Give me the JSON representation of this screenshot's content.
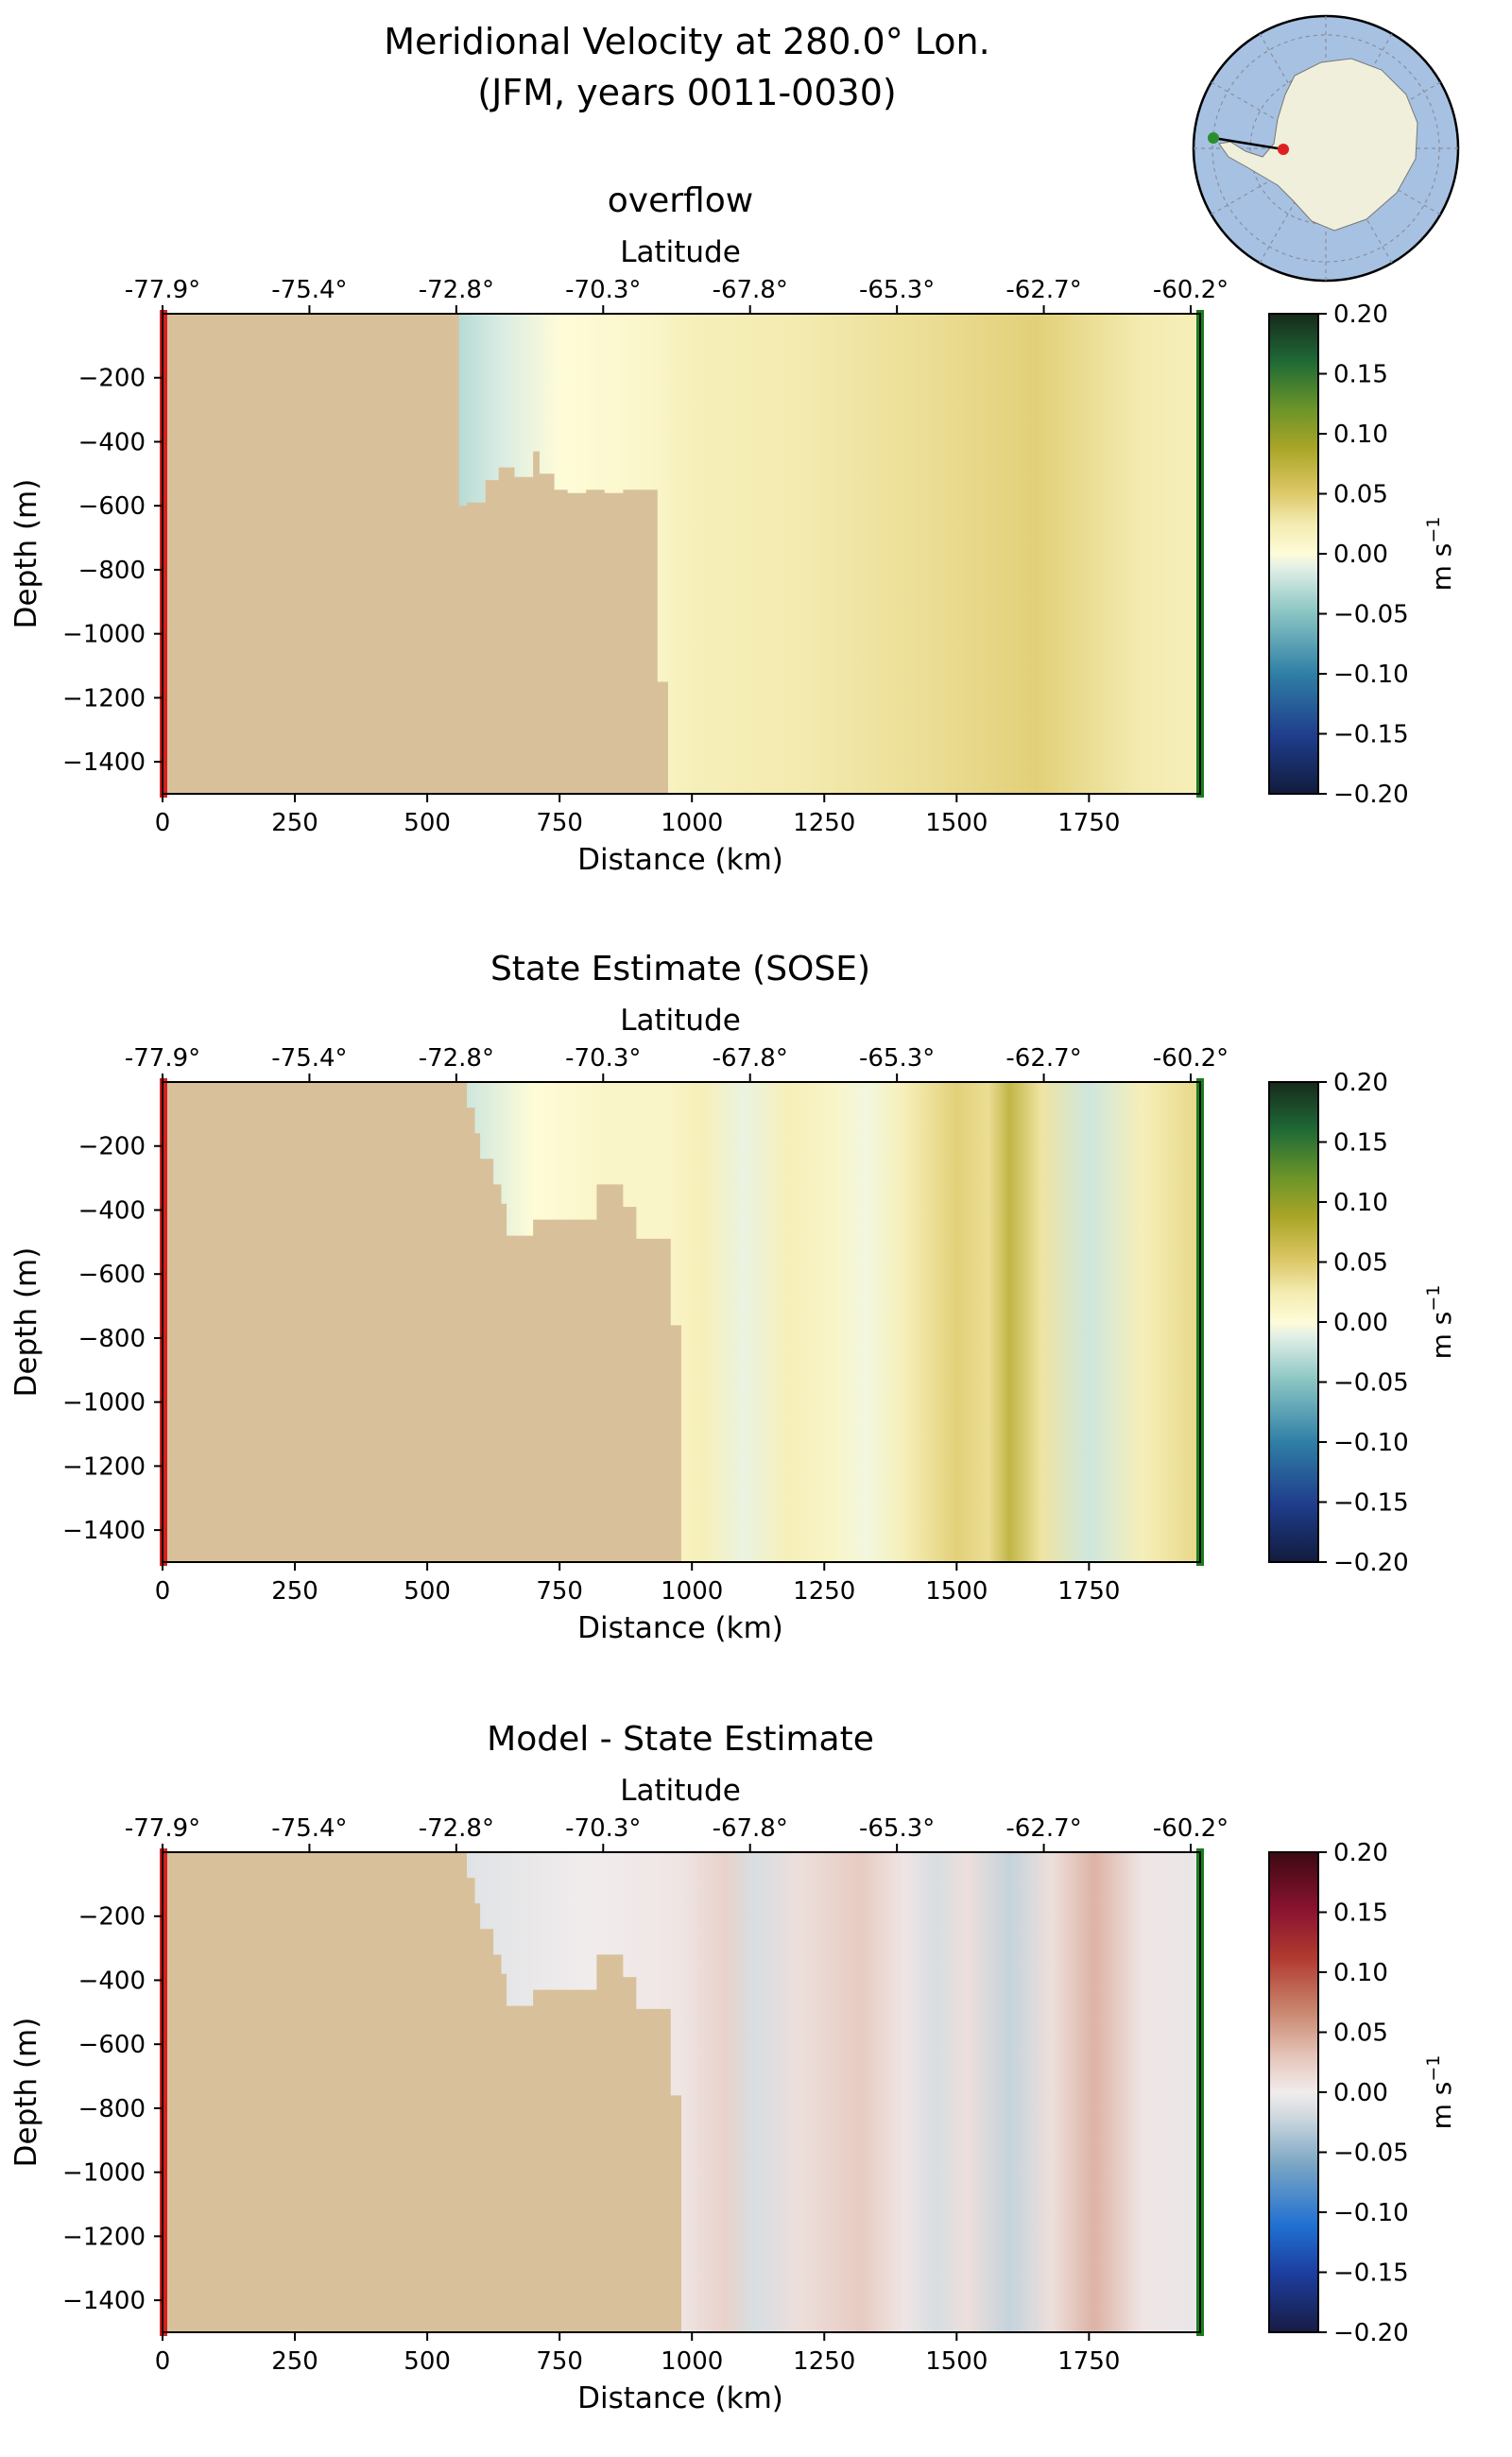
{
  "figure": {
    "title_line1": "Meridional Velocity at 280.0° Lon.",
    "title_line2": "(JFM, years 0011-0030)"
  },
  "inset_map": {
    "land_color": "#efefdb",
    "ocean_color": "#a7c1e3",
    "transect_start_color": "#2a8f2a",
    "transect_end_color": "#e02020"
  },
  "chart_data": [
    {
      "type": "heatmap",
      "title": "overflow",
      "xlabel": "Distance (km)",
      "ylabel": "Depth (m)",
      "top_axis_label": "Latitude",
      "top_ticks": [
        "-77.9°",
        "-75.4°",
        "-72.8°",
        "-70.3°",
        "-67.8°",
        "-65.3°",
        "-62.7°",
        "-60.2°"
      ],
      "xticks": [
        0,
        250,
        500,
        750,
        1000,
        1250,
        1500,
        1750
      ],
      "yticks": [
        -200,
        -400,
        -600,
        -800,
        -1000,
        -1200,
        -1400
      ],
      "xlim": [
        0,
        1960
      ],
      "ylim": [
        -1500,
        0
      ],
      "colorbar": {
        "label": "m s",
        "label_sup": "−1",
        "ticks": [
          "0.20",
          "0.15",
          "0.10",
          "0.05",
          "0.00",
          "−0.05",
          "−0.10",
          "−0.15",
          "−0.20"
        ],
        "colormap": "delta",
        "range": [
          -0.2,
          0.2
        ]
      },
      "bathymetry_km_depth": [
        [
          0,
          -1500
        ],
        [
          0,
          0
        ],
        [
          560,
          0
        ],
        [
          560,
          -600
        ],
        [
          575,
          -600
        ],
        [
          575,
          -590
        ],
        [
          610,
          -590
        ],
        [
          610,
          -520
        ],
        [
          635,
          -520
        ],
        [
          635,
          -480
        ],
        [
          665,
          -480
        ],
        [
          665,
          -510
        ],
        [
          700,
          -510
        ],
        [
          700,
          -430
        ],
        [
          712,
          -430
        ],
        [
          712,
          -500
        ],
        [
          740,
          -500
        ],
        [
          740,
          -550
        ],
        [
          765,
          -550
        ],
        [
          765,
          -560
        ],
        [
          800,
          -560
        ],
        [
          800,
          -550
        ],
        [
          835,
          -550
        ],
        [
          835,
          -560
        ],
        [
          870,
          -560
        ],
        [
          870,
          -550
        ],
        [
          935,
          -550
        ],
        [
          935,
          -1150
        ],
        [
          955,
          -1150
        ],
        [
          955,
          -1500
        ]
      ],
      "velocity_bands_km_ms": [
        [
          560,
          -0.03
        ],
        [
          640,
          -0.015
        ],
        [
          750,
          0.0
        ],
        [
          930,
          0.01
        ],
        [
          1000,
          0.02
        ],
        [
          1200,
          0.025
        ],
        [
          1450,
          0.035
        ],
        [
          1650,
          0.045
        ],
        [
          1850,
          0.025
        ],
        [
          1960,
          0.02
        ]
      ]
    },
    {
      "type": "heatmap",
      "title": "State Estimate (SOSE)",
      "xlabel": "Distance (km)",
      "ylabel": "Depth (m)",
      "top_axis_label": "Latitude",
      "top_ticks": [
        "-77.9°",
        "-75.4°",
        "-72.8°",
        "-70.3°",
        "-67.8°",
        "-65.3°",
        "-62.7°",
        "-60.2°"
      ],
      "xticks": [
        0,
        250,
        500,
        750,
        1000,
        1250,
        1500,
        1750
      ],
      "yticks": [
        -200,
        -400,
        -600,
        -800,
        -1000,
        -1200,
        -1400
      ],
      "xlim": [
        0,
        1960
      ],
      "ylim": [
        -1500,
        0
      ],
      "colorbar": {
        "label": "m s",
        "label_sup": "−1",
        "ticks": [
          "0.20",
          "0.15",
          "0.10",
          "0.05",
          "0.00",
          "−0.05",
          "−0.10",
          "−0.15",
          "−0.20"
        ],
        "colormap": "delta",
        "range": [
          -0.2,
          0.2
        ]
      },
      "bathymetry_km_depth": [
        [
          0,
          -1500
        ],
        [
          0,
          0
        ],
        [
          575,
          0
        ],
        [
          575,
          -80
        ],
        [
          590,
          -80
        ],
        [
          590,
          -160
        ],
        [
          600,
          -160
        ],
        [
          600,
          -240
        ],
        [
          625,
          -240
        ],
        [
          625,
          -320
        ],
        [
          640,
          -320
        ],
        [
          640,
          -380
        ],
        [
          650,
          -380
        ],
        [
          650,
          -480
        ],
        [
          700,
          -480
        ],
        [
          700,
          -430
        ],
        [
          820,
          -430
        ],
        [
          820,
          -320
        ],
        [
          870,
          -320
        ],
        [
          870,
          -390
        ],
        [
          895,
          -390
        ],
        [
          895,
          -490
        ],
        [
          960,
          -490
        ],
        [
          960,
          -760
        ],
        [
          980,
          -760
        ],
        [
          980,
          -1500
        ]
      ],
      "velocity_bands_km_ms": [
        [
          575,
          -0.02
        ],
        [
          700,
          0.0
        ],
        [
          830,
          0.01
        ],
        [
          950,
          0.01
        ],
        [
          1020,
          0.02
        ],
        [
          1100,
          -0.008
        ],
        [
          1180,
          0.02
        ],
        [
          1260,
          0.012
        ],
        [
          1330,
          -0.005
        ],
        [
          1400,
          0.02
        ],
        [
          1500,
          0.045
        ],
        [
          1560,
          0.035
        ],
        [
          1600,
          0.07
        ],
        [
          1660,
          0.03
        ],
        [
          1750,
          -0.02
        ],
        [
          1850,
          0.02
        ],
        [
          1960,
          0.04
        ]
      ]
    },
    {
      "type": "heatmap",
      "title": "Model - State Estimate",
      "xlabel": "Distance (km)",
      "ylabel": "Depth (m)",
      "top_axis_label": "Latitude",
      "top_ticks": [
        "-77.9°",
        "-75.4°",
        "-72.8°",
        "-70.3°",
        "-67.8°",
        "-65.3°",
        "-62.7°",
        "-60.2°"
      ],
      "xticks": [
        0,
        250,
        500,
        750,
        1000,
        1250,
        1500,
        1750
      ],
      "yticks": [
        -200,
        -400,
        -600,
        -800,
        -1000,
        -1200,
        -1400
      ],
      "xlim": [
        0,
        1960
      ],
      "ylim": [
        -1500,
        0
      ],
      "colorbar": {
        "label": "m s",
        "label_sup": "−1",
        "ticks": [
          "0.20",
          "0.15",
          "0.10",
          "0.05",
          "0.00",
          "−0.05",
          "−0.10",
          "−0.15",
          "−0.20"
        ],
        "colormap": "balance",
        "range": [
          -0.2,
          0.2
        ]
      },
      "bathymetry_km_depth": [
        [
          0,
          -1500
        ],
        [
          0,
          0
        ],
        [
          575,
          0
        ],
        [
          575,
          -80
        ],
        [
          590,
          -80
        ],
        [
          590,
          -160
        ],
        [
          600,
          -160
        ],
        [
          600,
          -240
        ],
        [
          625,
          -240
        ],
        [
          625,
          -320
        ],
        [
          640,
          -320
        ],
        [
          640,
          -380
        ],
        [
          650,
          -380
        ],
        [
          650,
          -480
        ],
        [
          700,
          -480
        ],
        [
          700,
          -430
        ],
        [
          820,
          -430
        ],
        [
          820,
          -320
        ],
        [
          870,
          -320
        ],
        [
          870,
          -390
        ],
        [
          895,
          -390
        ],
        [
          895,
          -490
        ],
        [
          960,
          -490
        ],
        [
          960,
          -760
        ],
        [
          980,
          -760
        ],
        [
          980,
          -1500
        ]
      ],
      "velocity_bands_km_ms": [
        [
          575,
          -0.01
        ],
        [
          800,
          0.0
        ],
        [
          980,
          0.005
        ],
        [
          1060,
          0.02
        ],
        [
          1120,
          -0.015
        ],
        [
          1200,
          0.01
        ],
        [
          1320,
          0.025
        ],
        [
          1400,
          0.005
        ],
        [
          1460,
          -0.015
        ],
        [
          1520,
          0.01
        ],
        [
          1600,
          -0.025
        ],
        [
          1680,
          0.01
        ],
        [
          1760,
          0.04
        ],
        [
          1850,
          0.005
        ],
        [
          1960,
          -0.005
        ]
      ]
    }
  ]
}
